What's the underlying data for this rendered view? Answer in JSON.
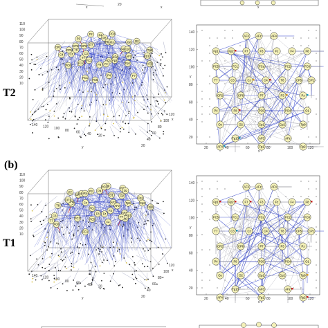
{
  "labels": {
    "t2": "T2",
    "b": "(b)",
    "t1": "T1"
  },
  "axes": {
    "x_letter": "x",
    "y_letter": "y",
    "z_ticks": [
      "110",
      "100",
      "90",
      "80",
      "70",
      "60",
      "50",
      "40",
      "30",
      "20",
      "10"
    ],
    "y3d_ticks": [
      "140",
      "120",
      "100",
      "80",
      "60",
      "40",
      "20"
    ],
    "x3d_ticks": [
      "20",
      "40",
      "60",
      "80",
      "100",
      "120"
    ],
    "flat_y_ticks": [
      "140",
      "120",
      "100",
      "80",
      "60",
      "40",
      "20"
    ],
    "flat_x_ticks": [
      "20",
      "40",
      "60",
      "80",
      "100",
      "120"
    ]
  },
  "electrodes": [
    "AF3",
    "AFz",
    "AF4",
    "Fp1",
    "Fp2",
    "F7",
    "F3",
    "Fz",
    "F4",
    "F8",
    "FC5",
    "FC1",
    "FCz",
    "FC2",
    "FC6",
    "T7",
    "C3",
    "Cz",
    "C4",
    "T8",
    "CP5",
    "CP1",
    "CP2",
    "CP6",
    "P7",
    "P3",
    "Pz",
    "P4",
    "P8",
    "PO3",
    "PO4",
    "O1",
    "Oz",
    "O2",
    "Cp1",
    "Cp2",
    "Tp9",
    "Tp10"
  ],
  "colors": {
    "edge_dense": "#2a3cc8",
    "edge_light": "#8a8fb0",
    "node_fill": "#f4f1b8",
    "node_stroke": "#333333",
    "point": "#222222",
    "point_y": "#d9c24a"
  }
}
